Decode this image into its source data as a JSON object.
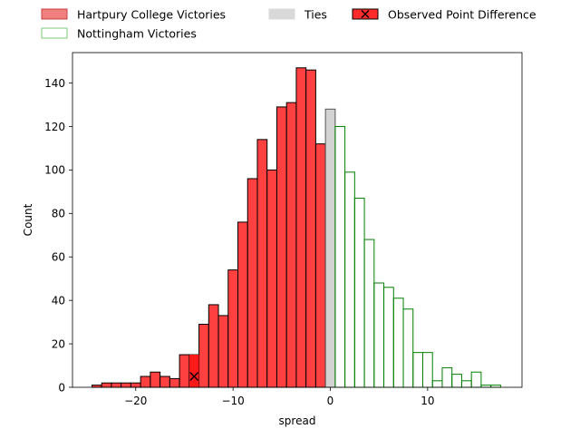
{
  "chart_data": {
    "type": "histogram",
    "xlabel": "spread",
    "ylabel": "Count",
    "xlim": [
      -26.5,
      19.7
    ],
    "ylim": [
      0,
      154
    ],
    "x_ticks": [
      -20,
      -10,
      0,
      10
    ],
    "x_tick_labels": [
      "−20",
      "−10",
      "0",
      "10"
    ],
    "y_ticks": [
      0,
      20,
      40,
      60,
      80,
      100,
      120,
      140
    ],
    "y_tick_labels": [
      "0",
      "20",
      "40",
      "60",
      "80",
      "100",
      "120",
      "140"
    ],
    "bin_width": 1,
    "legend_position": "above plot, top",
    "legend": [
      {
        "key": "hartpury",
        "label": "Hartpury College Victories",
        "fill": "#f08080",
        "stroke": "#c94040",
        "marker": false
      },
      {
        "key": "nottingham",
        "label": "Nottingham Victories",
        "fill": "#ffffff",
        "stroke": "#7ec87e",
        "marker": false
      },
      {
        "key": "ties",
        "label": "Ties",
        "fill": "#d9d9d9",
        "stroke": "#d9d9d9",
        "marker": false
      },
      {
        "key": "observed",
        "label": "Observed Point Difference",
        "fill": "#ff2b2b",
        "stroke": "#000000",
        "marker": true
      }
    ],
    "series": [
      {
        "name": "Hartpury College Victories",
        "fill": "#ff4040",
        "stroke": "#000000",
        "bin_starts": [
          -24.5,
          -23.5,
          -22.5,
          -21.5,
          -20.5,
          -19.5,
          -18.5,
          -17.5,
          -16.5,
          -15.5,
          -14.5,
          -13.5,
          -12.5,
          -11.5,
          -10.5,
          -9.5,
          -8.5,
          -7.5,
          -6.5,
          -5.5,
          -4.5,
          -3.5,
          -2.5,
          -1.5
        ],
        "values": [
          1,
          2,
          2,
          2,
          2,
          5,
          7,
          5,
          4,
          15,
          15,
          29,
          38,
          33,
          54,
          76,
          96,
          114,
          100,
          129,
          131,
          147,
          146,
          112
        ]
      },
      {
        "name": "Ties",
        "fill": "#d3d3d3",
        "stroke": "#555555",
        "bin_starts": [
          -0.5
        ],
        "values": [
          128
        ]
      },
      {
        "name": "Nottingham Victories",
        "fill": "none",
        "stroke": "#008000",
        "bin_starts": [
          0.5,
          1.5,
          2.5,
          3.5,
          4.5,
          5.5,
          6.5,
          7.5,
          8.5,
          9.5,
          10.5,
          11.5,
          12.5,
          13.5,
          14.5,
          15.5,
          16.5
        ],
        "values": [
          120,
          99,
          87,
          68,
          48,
          46,
          41,
          36,
          16,
          16,
          3,
          9,
          6,
          3,
          7,
          1,
          1
        ]
      }
    ],
    "observed": {
      "name": "Observed Point Difference",
      "x": -14,
      "bin_start": -14.5,
      "count": 15,
      "fill": "#ff1a1a",
      "marker": "x",
      "marker_y": 5
    }
  }
}
